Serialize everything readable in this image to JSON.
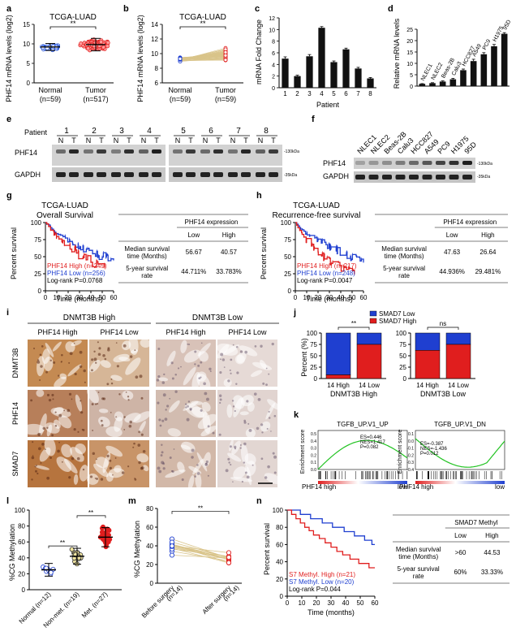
{
  "panels": {
    "a": {
      "letter": "a",
      "title": "TCGA-LUAD",
      "ylabel": "PHF14 mRNA levels (log2)",
      "ylim": [
        0,
        15
      ],
      "yticks": [
        "0",
        "5",
        "10",
        "15"
      ],
      "groups": [
        {
          "label": "Normal",
          "n": "(n=59)",
          "median": 9.2,
          "color": "#1f4fd8"
        },
        {
          "label": "Tumor",
          "n": "(n=517)",
          "median": 9.8,
          "color": "#e01e1e"
        }
      ],
      "sig": "**"
    },
    "b": {
      "letter": "b",
      "title": "TCGA-LUAD",
      "ylabel": "PHF14 mRNA levels (log2)",
      "ylim": [
        6,
        14
      ],
      "yticks": [
        "6",
        "8",
        "10",
        "12",
        "14"
      ],
      "groups": [
        {
          "label": "Normal",
          "n": "(n=59)"
        },
        {
          "label": "Tumor",
          "n": "(n=59)"
        }
      ],
      "sig": "**"
    },
    "c": {
      "letter": "c",
      "type": "bar",
      "ylabel": "mRNA Fold Change",
      "xlabel": "Patient",
      "ylim": [
        0,
        12
      ],
      "yticks": [
        "0",
        "2",
        "4",
        "6",
        "8",
        "10",
        "12"
      ],
      "categories": [
        "1",
        "2",
        "3",
        "4",
        "5",
        "6",
        "7",
        "8"
      ],
      "values": [
        5.0,
        2.0,
        5.4,
        10.3,
        4.4,
        6.6,
        3.3,
        1.6
      ],
      "errors": [
        0.3,
        0.15,
        0.3,
        0.2,
        0.2,
        0.2,
        0.2,
        0.15
      ]
    },
    "d": {
      "letter": "d",
      "type": "bar",
      "ylabel": "Relative mRNA levels",
      "ylim": [
        0,
        25
      ],
      "yticks": [
        "0",
        "5",
        "10",
        "15",
        "20",
        "25"
      ],
      "categories": [
        "NLEC1",
        "NLEC2",
        "Beas-2B",
        "Calu3",
        "HCC827",
        "A549",
        "PC9",
        "H1975",
        "95D"
      ],
      "values": [
        1.0,
        1.3,
        2.0,
        3.0,
        7.0,
        11.0,
        14.0,
        17.5,
        23.0
      ],
      "errors": [
        0.1,
        0.2,
        0.3,
        0.4,
        0.5,
        0.8,
        0.7,
        0.8,
        0.5
      ]
    },
    "e": {
      "letter": "e",
      "patient_label": "Patient",
      "patients": [
        "1",
        "2",
        "3",
        "4",
        "5",
        "6",
        "7",
        "8"
      ],
      "lanes": [
        "N",
        "T"
      ],
      "rows": [
        "PHF14",
        "GAPDH"
      ],
      "markers": [
        "-130kDa",
        "-35kDa"
      ]
    },
    "f": {
      "letter": "f",
      "lanes": [
        "NLEC1",
        "NLEC2",
        "Beas-2B",
        "Calu3",
        "HCC827",
        "A549",
        "PC9",
        "H1975",
        "95D"
      ],
      "rows": [
        "PHF14",
        "GAPDH"
      ],
      "markers": [
        "-130kDa",
        "-35kDa"
      ]
    },
    "g": {
      "letter": "g",
      "title1": "TCGA-LUAD",
      "title2": "Overall Survival",
      "ylabel": "Percent survival",
      "xlabel": "Time (months)",
      "xticks": [
        "0",
        "10",
        "20",
        "30",
        "40",
        "50",
        "60"
      ],
      "yticks": [
        "0",
        "25",
        "50",
        "75",
        "100"
      ],
      "legend": [
        {
          "text": "PHF14 High (n=249)",
          "color": "#e01e1e"
        },
        {
          "text": "PHF14 Low (n=256)",
          "color": "#1f3fd0"
        },
        {
          "text": "Log-rank P=0.0768",
          "color": "#000000"
        }
      ],
      "table": {
        "header": "PHF14 expression",
        "cols": [
          "Low",
          "High"
        ],
        "rows": [
          {
            "label1": "Median survival",
            "label2": "time (Months)",
            "low": "56.67",
            "high": "40.57"
          },
          {
            "label1": "5-year survival",
            "label2": "rate",
            "low": "44.711%",
            "high": "33.783%"
          }
        ]
      }
    },
    "h": {
      "letter": "h",
      "title1": "TCGA-LUAD",
      "title2": "Recurrence-free survival",
      "ylabel": "Percent survival",
      "xlabel": "Time (months)",
      "xticks": [
        "0",
        "10",
        "20",
        "30",
        "40",
        "50",
        "60"
      ],
      "yticks": [
        "0",
        "25",
        "50",
        "75",
        "100"
      ],
      "legend": [
        {
          "text": "PHF14 High (n=217)",
          "color": "#e01e1e"
        },
        {
          "text": "PHF14 Low (n=248)",
          "color": "#1f3fd0"
        },
        {
          "text": "Log-rank P=0.0047",
          "color": "#000000"
        }
      ],
      "table": {
        "header": "PHF14 expression",
        "cols": [
          "Low",
          "High"
        ],
        "rows": [
          {
            "label1": "Median survival",
            "label2": "time (Months)",
            "low": "47.63",
            "high": "26.64"
          },
          {
            "label1": "5-year survival",
            "label2": "rate",
            "low": "44.936%",
            "high": "29.481%"
          }
        ]
      }
    },
    "i": {
      "letter": "i",
      "group_high": "DNMT3B High",
      "group_low": "DNMT3B Low",
      "col_labels": [
        "PHF14 High",
        "PHF14 Low",
        "PHF14 High",
        "PHF14 Low"
      ],
      "row_labels": [
        "DNMT3B",
        "PHF14",
        "SMAD7"
      ]
    },
    "j": {
      "letter": "j",
      "type": "bar",
      "ylabel": "Percent (%)",
      "legend": [
        {
          "text": "SMAD7 Low",
          "color": "#1f3fd0"
        },
        {
          "text": "SMAD7 High",
          "color": "#e01e1e"
        }
      ],
      "yticks": [
        "0",
        "25",
        "50",
        "75",
        "100"
      ],
      "groups": [
        {
          "label": "DNMT3B High",
          "sig": "**",
          "categories": [
            "14 High",
            "14 Low"
          ],
          "high_pct": [
            8,
            75
          ]
        },
        {
          "label": "DNMT3B Low",
          "sig": "ns",
          "categories": [
            "14 High",
            "14 Low"
          ],
          "high_pct": [
            62,
            75
          ]
        }
      ]
    },
    "k": {
      "letter": "k",
      "ylabel": "Enrichment score",
      "plots": [
        {
          "title": "TGFB_UP.V1_UP",
          "stats": [
            "ES=0.446",
            "NES=1.417",
            "P=0.082"
          ],
          "left": "PHF14 high",
          "right": "low",
          "yticks": [
            "0.5",
            "0.4",
            "0.3",
            "0.2",
            "0.1",
            "0.0"
          ]
        },
        {
          "title": "TGFB_UP.V1_DN",
          "stats": [
            "ES=-0.387",
            "NES=-1.436",
            "P=0.012"
          ],
          "left": "PHF14 high",
          "right": "low",
          "yticks": [
            "0.1",
            "0.0",
            "-0.1",
            "-0.2",
            "-0.3",
            "-0.4"
          ]
        }
      ]
    },
    "l": {
      "letter": "l",
      "ylabel": "%CG Methylation",
      "ylim": [
        0,
        100
      ],
      "yticks": [
        "0",
        "20",
        "40",
        "60",
        "80",
        "100"
      ],
      "groups": [
        {
          "label": "Normal (n=12)",
          "mean": 25,
          "sd": 8,
          "fill": "#ffffff",
          "stroke": "#1f3fd0"
        },
        {
          "label": "Non-met. (n=19)",
          "mean": 42,
          "sd": 10,
          "fill": "#f2e6a0",
          "stroke": "#333333"
        },
        {
          "label": "Met. (n=27)",
          "mean": 66,
          "sd": 12,
          "fill": "#e01e1e",
          "stroke": "#e01e1e"
        }
      ],
      "sig": [
        "**",
        "**"
      ]
    },
    "m": {
      "letter": "m",
      "ylabel": "%CG Methylation",
      "ylim": [
        0,
        80
      ],
      "yticks": [
        "0",
        "20",
        "40",
        "60",
        "80"
      ],
      "groups": [
        {
          "label": "Before surgery",
          "n": "(n=14)"
        },
        {
          "label": "After surgery",
          "n": "(n=14)"
        }
      ],
      "sig": "**"
    },
    "n": {
      "letter": "n",
      "ylabel": "Percent survival",
      "xlabel": "Time (months)",
      "xticks": [
        "0",
        "10",
        "20",
        "30",
        "40",
        "50",
        "60"
      ],
      "yticks": [
        "0",
        "20",
        "40",
        "60",
        "80",
        "100"
      ],
      "legend": [
        {
          "text": "S7 Methyl. High (n=21)",
          "color": "#e01e1e"
        },
        {
          "text": "S7 Methyl. Low (n=20)",
          "color": "#1f3fd0"
        },
        {
          "text": "Log-rank P=0.044",
          "color": "#000000"
        }
      ],
      "table": {
        "header": "SMAD7 Methyl",
        "cols": [
          "Low",
          "High"
        ],
        "rows": [
          {
            "label1": "Median survival",
            "label2": "time (Months)",
            "low": ">60",
            "high": "44.53"
          },
          {
            "label1": "5-year survival",
            "label2": "rate",
            "low": "60%",
            "high": "33.33%"
          }
        ]
      }
    }
  }
}
